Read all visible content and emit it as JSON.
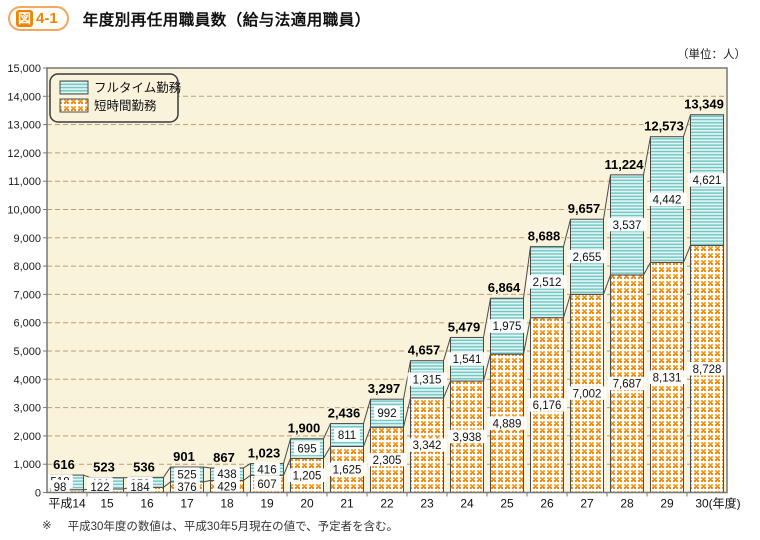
{
  "header": {
    "badge_prefix": "図",
    "badge_number": "4-1",
    "title": "年度別再任用職員数（給与法適用職員）"
  },
  "unit_label": "（単位：人）",
  "footnote": {
    "mark": "※",
    "text": "平成30年度の数値は、平成30年5月現在の値で、予定者を含む。"
  },
  "chart_data": {
    "type": "bar",
    "stacked": true,
    "title": "年度別再任用職員数（給与法適用職員）",
    "categories": [
      "平成14",
      "15",
      "16",
      "17",
      "18",
      "19",
      "20",
      "21",
      "22",
      "23",
      "24",
      "25",
      "26",
      "27",
      "28",
      "29",
      "30"
    ],
    "last_category_suffix": "(年度)",
    "series": [
      {
        "name": "フルタイム勤務",
        "pattern": "h-stripes",
        "swatch_colors": {
          "base": "#E6F5F3",
          "stripe": "#72C8C5"
        },
        "values": [
          518,
          401,
          352,
          525,
          438,
          416,
          695,
          811,
          992,
          1315,
          1541,
          1975,
          2512,
          2655,
          3537,
          4442,
          4621
        ]
      },
      {
        "name": "短時間勤務",
        "pattern": "dots",
        "swatch_colors": {
          "base": "#FFFFFF",
          "dot": "#EF8200",
          "dot_light": "#F6A93B"
        },
        "values": [
          98,
          122,
          184,
          376,
          429,
          607,
          1205,
          1625,
          2305,
          3342,
          3938,
          4889,
          6176,
          7002,
          7687,
          8131,
          8728
        ]
      }
    ],
    "totals": [
      616,
      523,
      536,
      901,
      867,
      1023,
      1900,
      2436,
      3297,
      4657,
      5479,
      6864,
      8688,
      9657,
      11224,
      12573,
      13349
    ],
    "ylim": [
      0,
      15000
    ],
    "ytick_step": 1000,
    "grid": true,
    "legend_position": "top-left",
    "colors": {
      "plot_bg": "#FAF3DC",
      "gridline": "#C49A6A",
      "axis_border": "#777777",
      "bar_border": "#4A4A4A",
      "label_text": "#111111",
      "total_text": "#000000"
    }
  }
}
